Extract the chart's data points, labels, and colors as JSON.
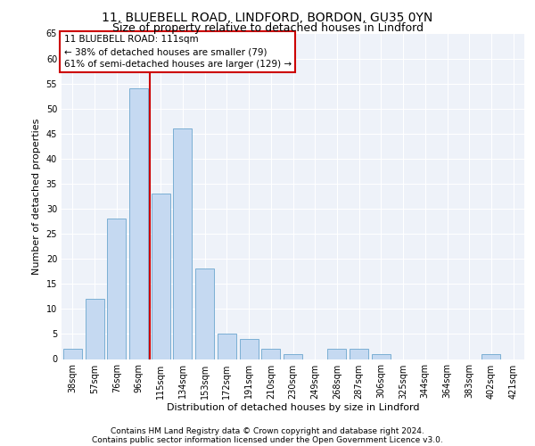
{
  "title1": "11, BLUEBELL ROAD, LINDFORD, BORDON, GU35 0YN",
  "title2": "Size of property relative to detached houses in Lindford",
  "xlabel": "Distribution of detached houses by size in Lindford",
  "ylabel": "Number of detached properties",
  "categories": [
    "38sqm",
    "57sqm",
    "76sqm",
    "96sqm",
    "115sqm",
    "134sqm",
    "153sqm",
    "172sqm",
    "191sqm",
    "210sqm",
    "230sqm",
    "249sqm",
    "268sqm",
    "287sqm",
    "306sqm",
    "325sqm",
    "344sqm",
    "364sqm",
    "383sqm",
    "402sqm",
    "421sqm"
  ],
  "values": [
    2,
    12,
    28,
    54,
    33,
    46,
    18,
    5,
    4,
    2,
    1,
    0,
    2,
    2,
    1,
    0,
    0,
    0,
    0,
    1,
    0
  ],
  "bar_color": "#c5d9f1",
  "bar_edge_color": "#7bafd4",
  "background_color": "#eef2f9",
  "grid_color": "#ffffff",
  "annotation_box_text": "11 BLUEBELL ROAD: 111sqm\n← 38% of detached houses are smaller (79)\n61% of semi-detached houses are larger (129) →",
  "annotation_box_color": "#ffffff",
  "annotation_box_edge_color": "#cc0000",
  "vline_color": "#cc0000",
  "ylim": [
    0,
    65
  ],
  "yticks": [
    0,
    5,
    10,
    15,
    20,
    25,
    30,
    35,
    40,
    45,
    50,
    55,
    60,
    65
  ],
  "footer1": "Contains HM Land Registry data © Crown copyright and database right 2024.",
  "footer2": "Contains public sector information licensed under the Open Government Licence v3.0.",
  "title1_fontsize": 10,
  "title2_fontsize": 9,
  "axis_fontsize": 8,
  "tick_fontsize": 7,
  "annotation_fontsize": 7.5,
  "footer_fontsize": 6.5
}
